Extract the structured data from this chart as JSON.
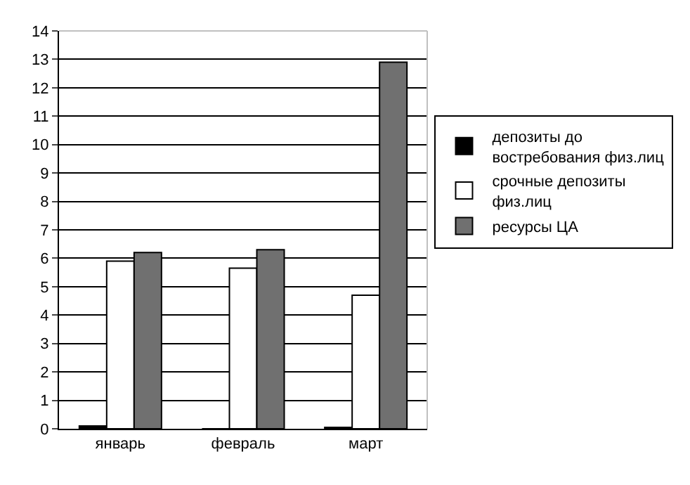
{
  "chart_data": {
    "type": "bar",
    "categories": [
      "январь",
      "февраль",
      "март"
    ],
    "series": [
      {
        "name": " депозиты до востребования физ.лиц",
        "color": "#000000",
        "values": [
          0.1,
          0,
          0.05
        ]
      },
      {
        "name": "срочные депозиты физ.лиц",
        "color": "#ffffff",
        "values": [
          5.9,
          5.65,
          4.7
        ]
      },
      {
        "name": "ресурсы ЦА",
        "color": "#707070",
        "values": [
          6.2,
          6.3,
          12.9
        ]
      }
    ],
    "ylim": [
      0,
      14
    ],
    "yticks": [
      0,
      1,
      2,
      3,
      4,
      5,
      6,
      7,
      8,
      9,
      10,
      11,
      12,
      13,
      14
    ],
    "grid": "y",
    "legend": "right"
  }
}
